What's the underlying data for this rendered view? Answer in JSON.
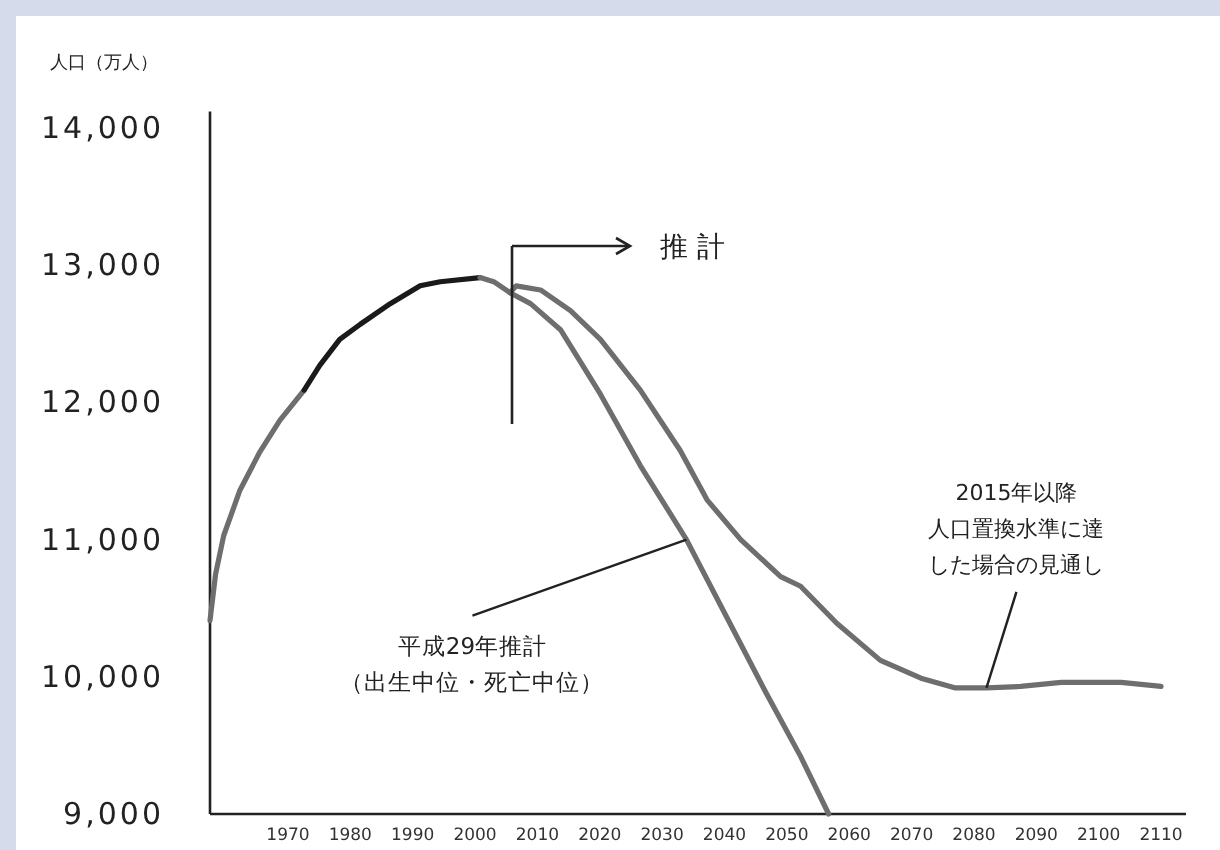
{
  "chart_data": {
    "type": "line",
    "ylabel": "人口（万人）",
    "xlim": [
      1957.5,
      2114
    ],
    "ylim": [
      9000,
      14120
    ],
    "xticks": [
      1970,
      1980,
      1990,
      2000,
      2010,
      2020,
      2030,
      2040,
      2050,
      2060,
      2070,
      2080,
      2090,
      2100,
      2110
    ],
    "yticks": [
      {
        "value": 9000,
        "label": "9,000"
      },
      {
        "value": 10000,
        "label": "10,000"
      },
      {
        "value": 11000,
        "label": "11,000"
      },
      {
        "value": 12000,
        "label": "12,000"
      },
      {
        "value": 13000,
        "label": "13,000"
      },
      {
        "value": 14000,
        "label": "14,000"
      }
    ],
    "grid": false,
    "marker": "none",
    "line_style": "solid",
    "series": [
      {
        "color": "#6e6e6e",
        "x": [
          1957.5,
          1958.4,
          1959.7,
          1962.3,
          1965.5,
          1968.7,
          1972.6
        ],
        "values": [
          10410,
          10750,
          11030,
          11360,
          11640,
          11870,
          12090
        ]
      },
      {
        "color": "#1a1a1a",
        "x": [
          1972.6,
          1975.1,
          1978.3,
          1981.6,
          1986.4,
          1991.2,
          1994.4,
          2000.8
        ],
        "values": [
          12090,
          12270,
          12460,
          12570,
          12720,
          12850,
          12880,
          12910
        ]
      },
      {
        "color": "#6e6e6e",
        "x": [
          2000.8,
          2003,
          2005.6,
          2006.6,
          2010.5,
          2015.3,
          2020.1,
          2026.5,
          2032.9,
          2037.2,
          2042.6,
          2049,
          2052.2,
          2058,
          2065,
          2071.5,
          2076.9,
          2082,
          2087.5,
          2094,
          2103.6,
          2110
        ],
        "values": [
          12910,
          12880,
          12800,
          12850,
          12820,
          12670,
          12460,
          12090,
          11650,
          11290,
          11000,
          10730,
          10660,
          10390,
          10120,
          9990,
          9920,
          9920,
          9930,
          9960,
          9960,
          9930
        ]
      },
      {
        "color": "#6e6e6e",
        "x": [
          2005.6,
          2008.9,
          2013.7,
          2020.1,
          2026.5,
          2033.9,
          2040.3,
          2046.7,
          2052.2,
          2056.7
        ],
        "values": [
          12800,
          12720,
          12530,
          12060,
          11540,
          11000,
          10440,
          9880,
          9420,
          9000
        ]
      }
    ],
    "annotations": [
      "推 計",
      {
        "text": "平成29年推計（出生中位・死亡中位）",
        "x": 2033.9,
        "y": 11000
      },
      {
        "text": "2015年以降人口置換水準に達した場合の見通し",
        "x": 2082,
        "y": 9920
      }
    ]
  }
}
